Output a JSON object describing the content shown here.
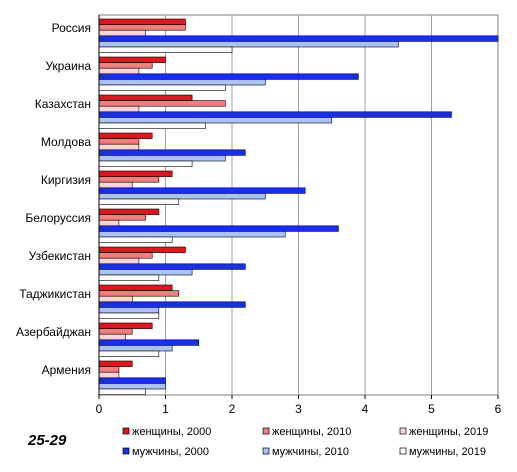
{
  "corner_label": "25-29",
  "chart_data": {
    "type": "bar",
    "orientation": "horizontal",
    "categories": [
      "Россия",
      "Украина",
      "Казахстан",
      "Молдова",
      "Киргизия",
      "Белоруссия",
      "Узбекистан",
      "Таджикистан",
      "Азербайджан",
      "Армения"
    ],
    "series": [
      {
        "name": "женщины, 2000",
        "color": "#e8131b",
        "values": [
          1.3,
          1.0,
          1.4,
          0.8,
          1.1,
          0.9,
          1.3,
          1.1,
          0.8,
          0.5
        ]
      },
      {
        "name": "женщины, 2010",
        "color": "#f47d7d",
        "values": [
          1.3,
          0.8,
          1.9,
          0.6,
          0.9,
          0.7,
          0.8,
          1.2,
          0.5,
          0.3
        ]
      },
      {
        "name": "женщины, 2019",
        "color": "#fbd3d3",
        "values": [
          0.7,
          0.6,
          0.6,
          0.6,
          0.5,
          0.3,
          0.6,
          0.5,
          0.4,
          0.3
        ]
      },
      {
        "name": "мужчины, 2000",
        "color": "#1530e6",
        "values": [
          6.0,
          3.9,
          5.3,
          2.2,
          3.1,
          3.6,
          2.2,
          2.2,
          1.5,
          1.0
        ]
      },
      {
        "name": "мужчины, 2010",
        "color": "#a9c3f5",
        "values": [
          4.5,
          2.5,
          3.5,
          1.9,
          2.5,
          2.8,
          1.4,
          0.9,
          1.1,
          1.0
        ]
      },
      {
        "name": "мужчины, 2019",
        "color": "#ffffff",
        "values": [
          2.0,
          1.9,
          1.6,
          1.4,
          1.2,
          1.1,
          0.9,
          0.9,
          0.9,
          0.7
        ]
      }
    ],
    "xlim": [
      0,
      6
    ],
    "xticks": [
      "0",
      "1",
      "2",
      "3",
      "4",
      "5",
      "6"
    ],
    "grid": "vertical",
    "legend": "bottom"
  }
}
